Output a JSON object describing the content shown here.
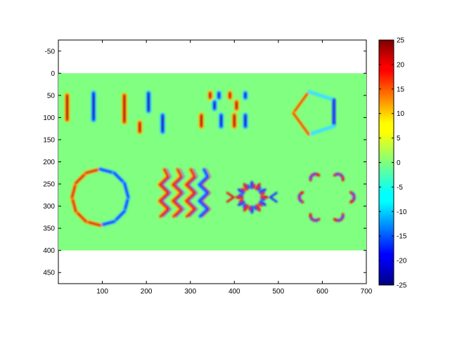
{
  "chart_data": {
    "type": "heatmap",
    "title": "",
    "xlabel": "",
    "ylabel": "",
    "xlim": [
      0,
      700
    ],
    "ylim": [
      -75,
      475
    ],
    "y_reversed": true,
    "grid": false,
    "image_extent": {
      "x": [
        0,
        700
      ],
      "y": [
        0,
        400
      ]
    },
    "background_value": 0,
    "x_ticks": [
      100,
      200,
      300,
      400,
      500,
      600,
      700
    ],
    "y_ticks": [
      -50,
      0,
      50,
      100,
      150,
      200,
      250,
      300,
      350,
      400,
      450
    ],
    "colorbar": {
      "range": [
        -25,
        25
      ],
      "ticks": [
        25,
        20,
        15,
        10,
        5,
        0,
        -5,
        -10,
        -15,
        -20,
        -25
      ],
      "colormap": "jet"
    },
    "features": [
      {
        "shape": "bar",
        "x": 20,
        "y": [
          50,
          105
        ],
        "polarity": "positive"
      },
      {
        "shape": "bar",
        "x": 80,
        "y": [
          45,
          105
        ],
        "polarity": "negative"
      },
      {
        "shape": "bar",
        "x": 150,
        "y": [
          50,
          110
        ],
        "polarity": "positive"
      },
      {
        "shape": "bar",
        "x": 205,
        "y": [
          45,
          85
        ],
        "polarity": "negative"
      },
      {
        "shape": "bar",
        "x": 185,
        "y": [
          112,
          132
        ],
        "polarity": "positive"
      },
      {
        "shape": "bar",
        "x": 237,
        "y": [
          95,
          132
        ],
        "polarity": "negative"
      },
      {
        "shape": "bar",
        "x": 345,
        "y": [
          45,
          55
        ],
        "polarity": "positive"
      },
      {
        "shape": "bar",
        "x": 365,
        "y": [
          45,
          55
        ],
        "polarity": "negative"
      },
      {
        "shape": "bar",
        "x": 390,
        "y": [
          45,
          55
        ],
        "polarity": "positive"
      },
      {
        "shape": "bar",
        "x": 425,
        "y": [
          45,
          55
        ],
        "polarity": "negative"
      },
      {
        "shape": "bar",
        "x": 355,
        "y": [
          65,
          80
        ],
        "polarity": "negative"
      },
      {
        "shape": "bar",
        "x": 405,
        "y": [
          65,
          80
        ],
        "polarity": "positive"
      },
      {
        "shape": "bar",
        "x": 325,
        "y": [
          95,
          120
        ],
        "polarity": "positive"
      },
      {
        "shape": "bar",
        "x": 370,
        "y": [
          95,
          120
        ],
        "polarity": "negative"
      },
      {
        "shape": "bar",
        "x": 400,
        "y": [
          95,
          120
        ],
        "polarity": "positive"
      },
      {
        "shape": "bar",
        "x": 425,
        "y": [
          95,
          120
        ],
        "polarity": "negative"
      },
      {
        "shape": "pentagon",
        "cx": 585,
        "cy": 90,
        "polarity": "mixed"
      },
      {
        "shape": "ring",
        "cx": 95,
        "cy": 280,
        "r": 65,
        "polarity": "mixed"
      },
      {
        "shape": "wave",
        "x": 240,
        "y": [
          215,
          325
        ],
        "polarity": "positive"
      },
      {
        "shape": "wave",
        "x": 270,
        "y": [
          215,
          325
        ],
        "polarity": "positive"
      },
      {
        "shape": "wave",
        "x": 300,
        "y": [
          215,
          325
        ],
        "polarity": "positive"
      },
      {
        "shape": "wave",
        "x": 330,
        "y": [
          215,
          325
        ],
        "polarity": "negative"
      },
      {
        "shape": "starburst",
        "cx": 440,
        "cy": 280,
        "polarity": "mixed"
      },
      {
        "shape": "ring-of-blobs",
        "cx": 610,
        "cy": 280,
        "polarity": "mixed"
      }
    ]
  }
}
